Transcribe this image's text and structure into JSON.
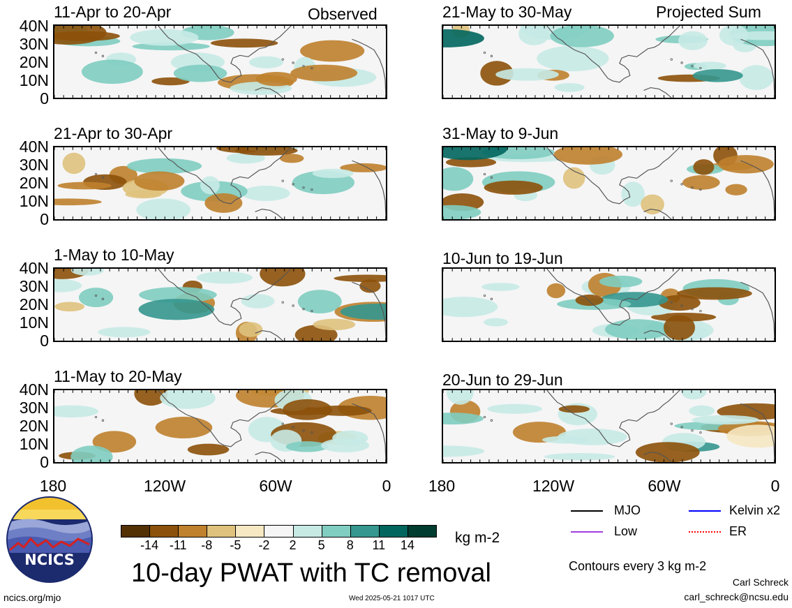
{
  "panel_titles": {
    "p1": "11-Apr to 20-Apr",
    "p2": "21-Apr to 30-Apr",
    "p3": "1-May to 10-May",
    "p4": "11-May to 20-May",
    "p5": "21-May to 30-May",
    "p6": "31-May to 9-Jun",
    "p7": "10-Jun to 19-Jun",
    "p8": "20-Jun to 29-Jun"
  },
  "corner_labels": {
    "observed": "Observed",
    "projected": "Projected Sum"
  },
  "lat_labels": [
    "40N",
    "30N",
    "20N",
    "10N",
    "0"
  ],
  "lon_labels": [
    "180",
    "120W",
    "60W",
    "0"
  ],
  "colorbar": {
    "ticks": [
      "-14",
      "-11",
      "-8",
      "-5",
      "-2",
      "2",
      "5",
      "8",
      "11",
      "14"
    ],
    "colors": [
      "#543005",
      "#8c510a",
      "#bf812d",
      "#dfc27d",
      "#f6e8c3",
      "#f5f5f5",
      "#c7eae5",
      "#80cdc1",
      "#35978f",
      "#01665e",
      "#003c30"
    ],
    "units": "kg m-2"
  },
  "main_title": "10-day PWAT with TC removal",
  "legend": {
    "mjo": {
      "label": "MJO",
      "color": "#000000"
    },
    "kelvin": {
      "label": "Kelvin x2",
      "color": "#0000ff"
    },
    "low": {
      "label": "Low",
      "color": "#a040e0"
    },
    "er": {
      "label": "ER",
      "color": "#ff0000"
    }
  },
  "contours_note": "Contours every 3 kg m-2",
  "author": {
    "name": "Carl Schreck",
    "email": "carl_schreck@ncsu.edu"
  },
  "footer": {
    "url": "ncics.org/mjo",
    "timestamp": "Wed 2025-05-21 1017 UTC"
  },
  "logo_text": "NCICS"
}
